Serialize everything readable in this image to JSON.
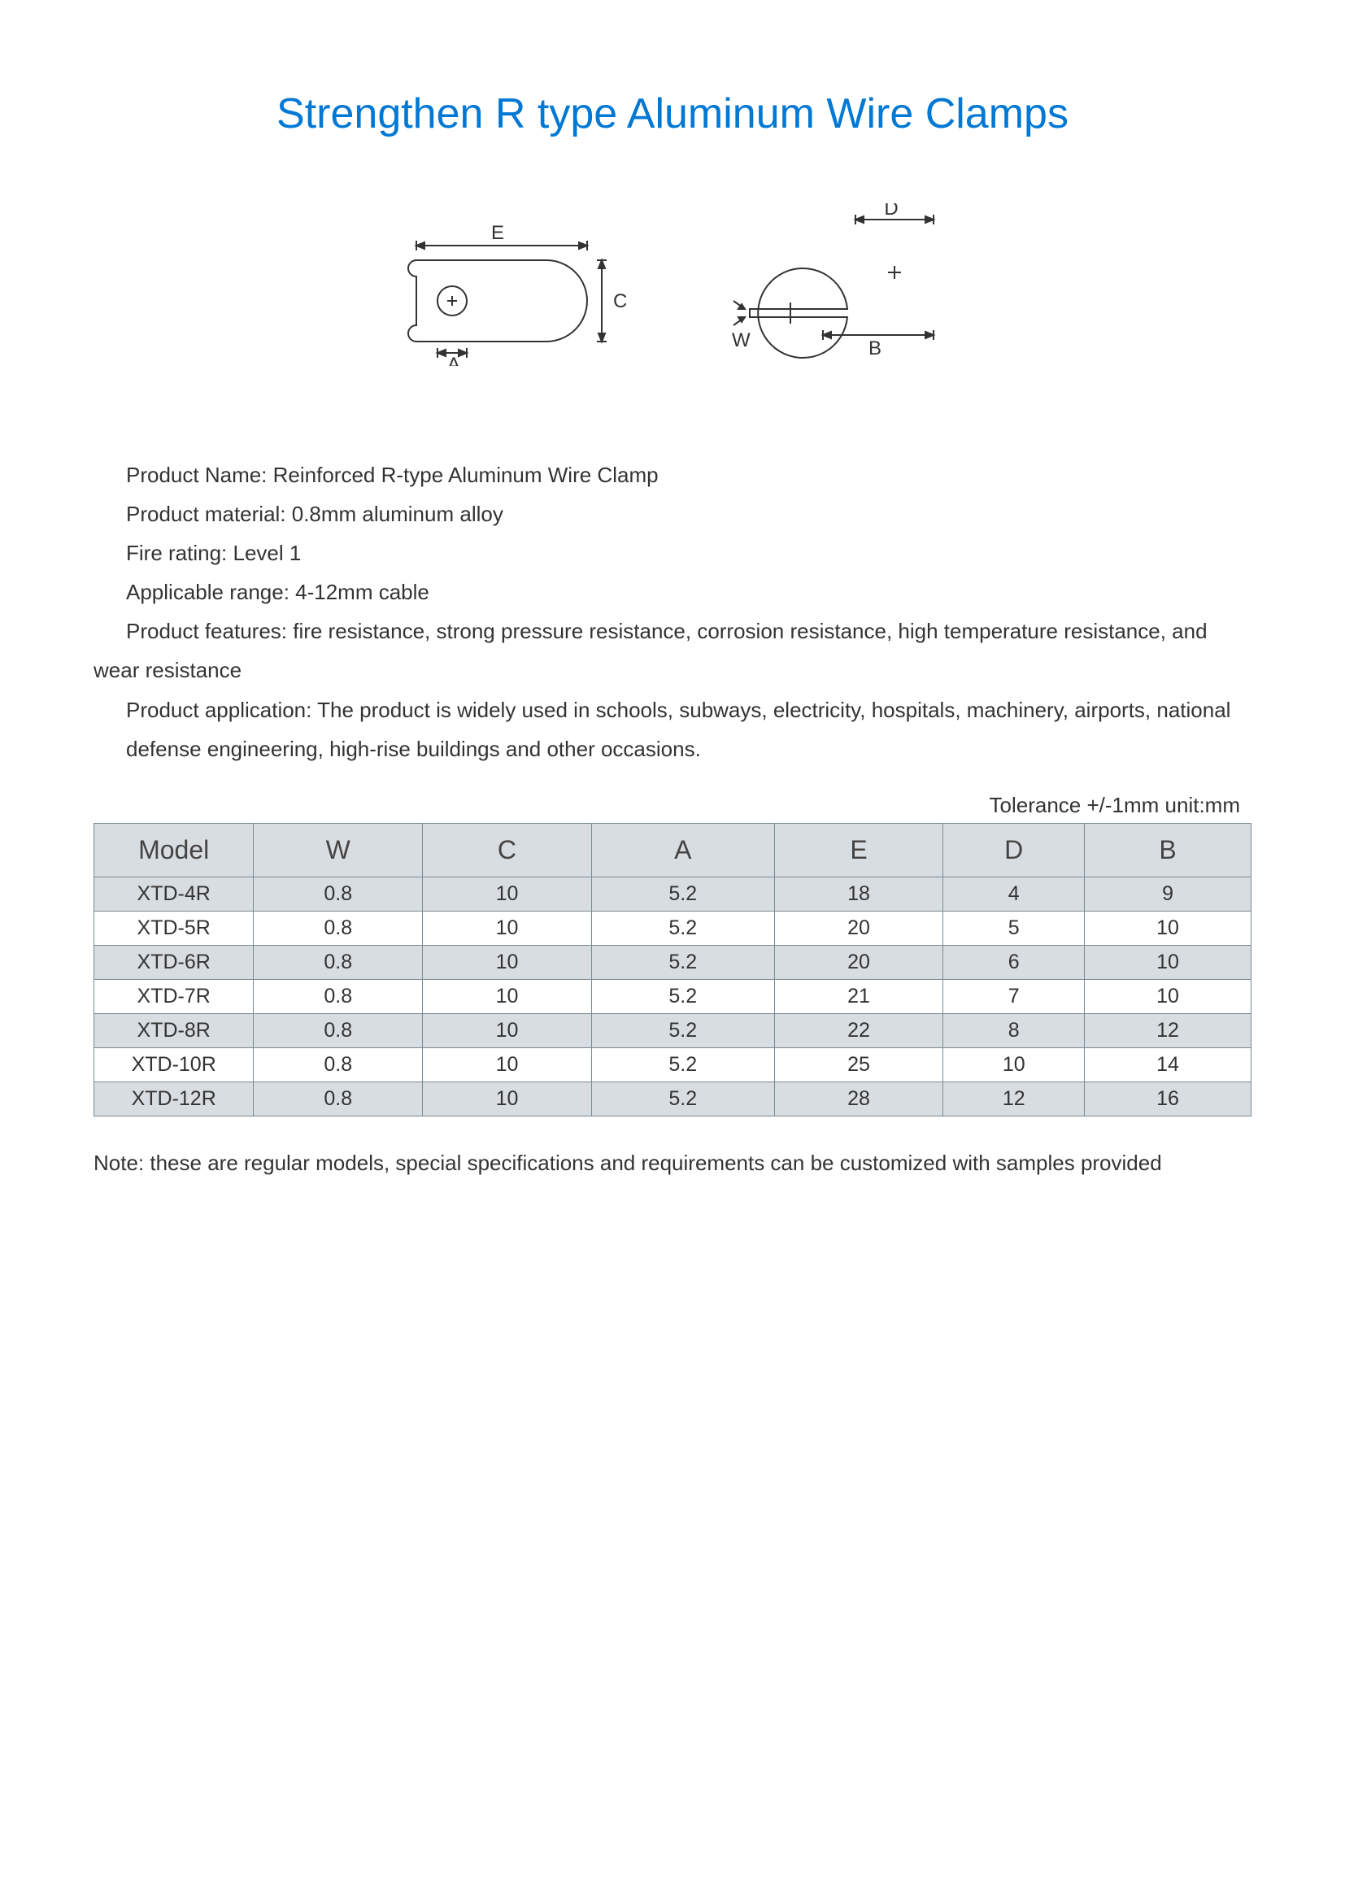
{
  "title": "Strengthen R type Aluminum Wire Clamps",
  "diagram": {
    "labels": {
      "E": "E",
      "C": "C",
      "A": "A",
      "W": "W",
      "B": "B",
      "D": "D"
    },
    "stroke": "#333333",
    "stroke_width": 2
  },
  "info": {
    "product_name": "Product Name: Reinforced R-type Aluminum Wire Clamp",
    "material": "Product material: 0.8mm aluminum alloy",
    "fire_rating": "Fire rating: Level 1",
    "applicable": "Applicable range: 4-12mm cable",
    "features": "Product features: fire resistance, strong pressure resistance, corrosion resistance, high temperature resistance, and wear resistance",
    "application": "Product application: The product is widely used in schools, subways, electricity, hospitals, machinery, airports, national defense engineering, high-rise buildings and other occasions."
  },
  "tolerance": "Tolerance +/-1mm unit:mm",
  "table": {
    "columns": [
      "Model",
      "W",
      "C",
      "A",
      "E",
      "D",
      "B"
    ],
    "col_widths_pct": [
      13.8,
      14.6,
      14.6,
      15.8,
      14.6,
      12.2,
      14.4
    ],
    "header_bg": "#d8dde1",
    "shade_bg": "#d8dde1",
    "border_color": "#7a8a93",
    "rows": [
      {
        "shade": true,
        "cells": [
          "XTD-4R",
          "0.8",
          "10",
          "5.2",
          "18",
          "4",
          "9"
        ]
      },
      {
        "shade": false,
        "cells": [
          "XTD-5R",
          "0.8",
          "10",
          "5.2",
          "20",
          "5",
          "10"
        ]
      },
      {
        "shade": true,
        "cells": [
          "XTD-6R",
          "0.8",
          "10",
          "5.2",
          "20",
          "6",
          "10"
        ]
      },
      {
        "shade": false,
        "cells": [
          "XTD-7R",
          "0.8",
          "10",
          "5.2",
          "21",
          "7",
          "10"
        ]
      },
      {
        "shade": true,
        "cells": [
          "XTD-8R",
          "0.8",
          "10",
          "5.2",
          "22",
          "8",
          "12"
        ]
      },
      {
        "shade": false,
        "cells": [
          "XTD-10R",
          "0.8",
          "10",
          "5.2",
          "25",
          "10",
          "14"
        ]
      },
      {
        "shade": true,
        "cells": [
          "XTD-12R",
          "0.8",
          "10",
          "5.2",
          "28",
          "12",
          "16"
        ]
      }
    ]
  },
  "note": "Note: these are regular models, special specifications and requirements can be customized with samples provided"
}
